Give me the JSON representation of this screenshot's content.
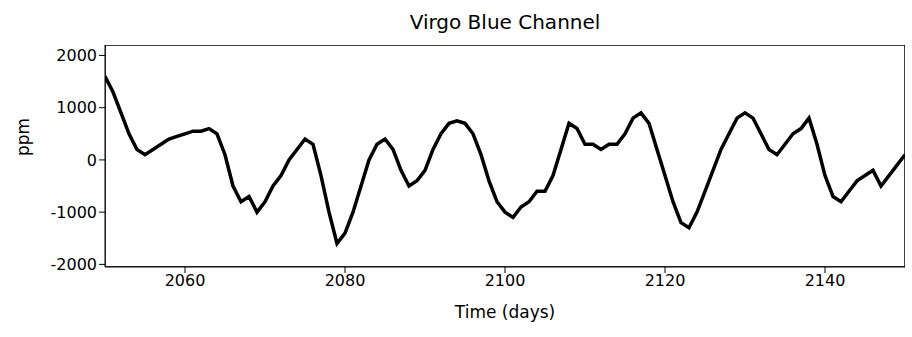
{
  "chart_data": {
    "type": "line",
    "title": "Virgo Blue Channel",
    "x_label": "Time (days)",
    "y_label": "ppm",
    "color": "#000000",
    "grid": false,
    "x": [
      2050,
      2051,
      2052,
      2053,
      2054,
      2055,
      2056,
      2057,
      2058,
      2059,
      2060,
      2061,
      2062,
      2063,
      2064,
      2065,
      2066,
      2067,
      2068,
      2069,
      2070,
      2071,
      2072,
      2073,
      2074,
      2075,
      2076,
      2077,
      2078,
      2079,
      2080,
      2081,
      2082,
      2083,
      2084,
      2085,
      2086,
      2087,
      2088,
      2089,
      2090,
      2091,
      2092,
      2093,
      2094,
      2095,
      2096,
      2097,
      2098,
      2099,
      2100,
      2101,
      2102,
      2103,
      2104,
      2105,
      2106,
      2107,
      2108,
      2109,
      2110,
      2111,
      2112,
      2113,
      2114,
      2115,
      2116,
      2117,
      2118,
      2119,
      2120,
      2121,
      2122,
      2123,
      2124,
      2125,
      2126,
      2127,
      2128,
      2129,
      2130,
      2131,
      2132,
      2133,
      2134,
      2135,
      2136,
      2137,
      2138,
      2139,
      2140,
      2141,
      2142,
      2143,
      2144,
      2145,
      2146,
      2147,
      2148,
      2149,
      2150
    ],
    "values": [
      1600,
      1300,
      900,
      500,
      200,
      100,
      200,
      300,
      400,
      450,
      500,
      550,
      550,
      600,
      500,
      100,
      -500,
      -800,
      -700,
      -1000,
      -800,
      -500,
      -300,
      0,
      200,
      400,
      300,
      -300,
      -1000,
      -1600,
      -1400,
      -1000,
      -500,
      0,
      300,
      400,
      200,
      -200,
      -500,
      -400,
      -200,
      200,
      500,
      700,
      750,
      700,
      500,
      100,
      -400,
      -800,
      -1000,
      -1100,
      -900,
      -800,
      -600,
      -600,
      -300,
      200,
      700,
      600,
      300,
      300,
      200,
      300,
      300,
      500,
      800,
      900,
      700,
      200,
      -300,
      -800,
      -1200,
      -1300,
      -1000,
      -600,
      -200,
      200,
      500,
      800,
      900,
      800,
      500,
      200,
      100,
      300,
      500,
      600,
      800,
      300,
      -300,
      -700,
      -800,
      -600,
      -400,
      -300,
      -200,
      -500,
      -300,
      -100,
      100
    ],
    "xlim": [
      2050,
      2150
    ],
    "xticks": [
      2060,
      2080,
      2100,
      2120,
      2140
    ],
    "ylim": [
      -2050,
      2200
    ],
    "yticks": [
      -2000,
      -1000,
      0,
      1000,
      2000
    ]
  }
}
